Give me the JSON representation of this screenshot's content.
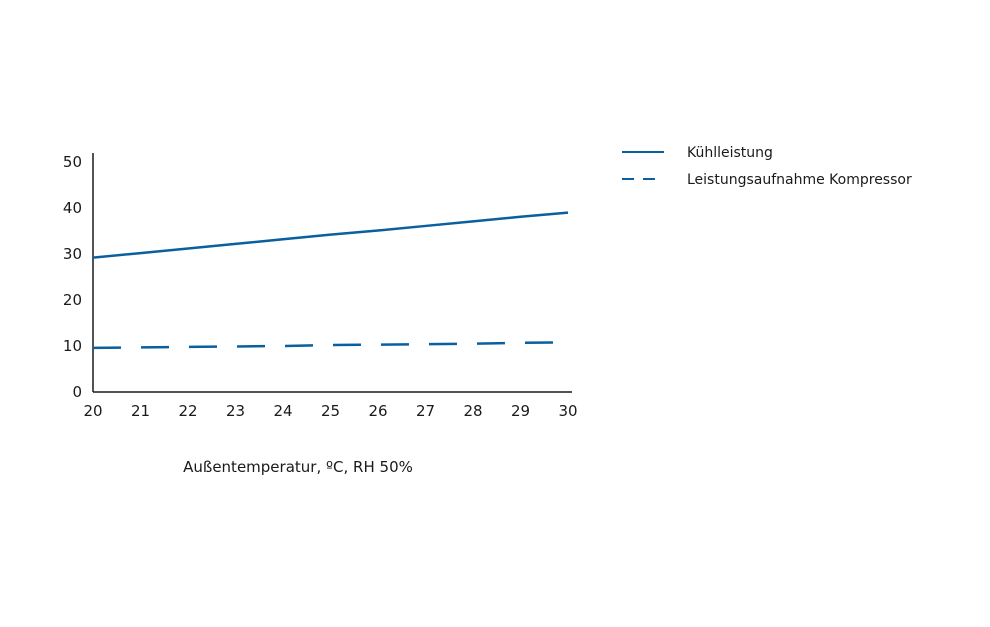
{
  "chart_data": {
    "type": "line",
    "xlabel": "Außentemperatur, ºC, RH 50%",
    "ylabel": "",
    "xlim": [
      20,
      30
    ],
    "ylim": [
      0,
      50
    ],
    "xticks": [
      "20",
      "21",
      "22",
      "23",
      "24",
      "25",
      "26",
      "27",
      "28",
      "29",
      "30"
    ],
    "yticks": [
      "0",
      "10",
      "20",
      "30",
      "40",
      "50"
    ],
    "grid": false,
    "legend_position": "top-right",
    "series_color": "#0a5f9e",
    "x": [
      20,
      21,
      22,
      23,
      24,
      25,
      26,
      27,
      28,
      29,
      30
    ],
    "series": [
      {
        "name": "Kühlleistung",
        "style": "solid",
        "values": [
          29.2,
          30.2,
          31.2,
          32.2,
          33.2,
          34.2,
          35.1,
          36.1,
          37.1,
          38.1,
          39.0
        ]
      },
      {
        "name": "Leistungsaufnahme Kompressor",
        "style": "dashed",
        "values": [
          9.6,
          9.7,
          9.8,
          9.9,
          10.0,
          10.2,
          10.3,
          10.4,
          10.5,
          10.7,
          10.8
        ]
      }
    ]
  }
}
